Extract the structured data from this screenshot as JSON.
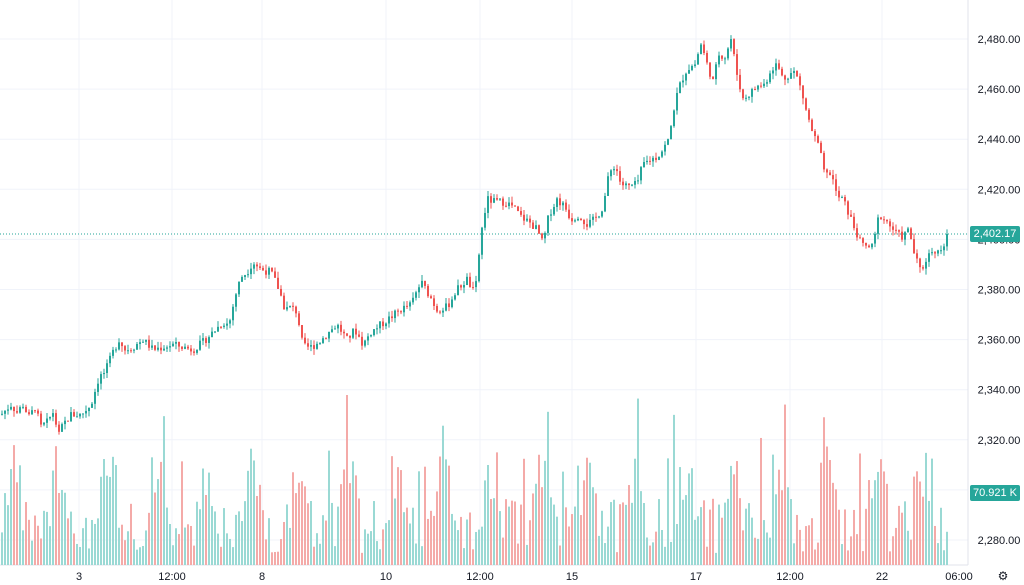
{
  "chart_data": {
    "type": "candlestick",
    "ylim": [
      2275,
      2488
    ],
    "y_ticks": [
      2280,
      2300,
      2320,
      2340,
      2360,
      2380,
      2400,
      2420,
      2440,
      2460,
      2480
    ],
    "y_tick_labels": [
      "2,280.00",
      "2,300.00",
      "2,320.00",
      "2,340.00",
      "2,360.00",
      "2,380.00",
      "2,400.00",
      "2,420.00",
      "2,440.00",
      "2,460.00",
      "2,480.00"
    ],
    "x_tick_labels": [
      "3",
      "12:00",
      "8",
      "10",
      "12:00",
      "15",
      "17",
      "12:00",
      "22",
      "06:00"
    ],
    "close_anchors": [
      [
        0,
        2330
      ],
      [
        10,
        2334
      ],
      [
        16,
        2331
      ],
      [
        22,
        2334
      ],
      [
        28,
        2329
      ],
      [
        34,
        2333
      ],
      [
        40,
        2325
      ],
      [
        46,
        2327
      ],
      [
        52,
        2331
      ],
      [
        58,
        2322
      ],
      [
        62,
        2326
      ],
      [
        70,
        2330
      ],
      [
        80,
        2330
      ],
      [
        90,
        2334
      ],
      [
        98,
        2345
      ],
      [
        104,
        2347
      ],
      [
        112,
        2355
      ],
      [
        118,
        2360
      ],
      [
        124,
        2356
      ],
      [
        132,
        2357
      ],
      [
        142,
        2360
      ],
      [
        152,
        2356
      ],
      [
        162,
        2357
      ],
      [
        172,
        2358
      ],
      [
        182,
        2357
      ],
      [
        192,
        2356
      ],
      [
        202,
        2359
      ],
      [
        212,
        2363
      ],
      [
        222,
        2367
      ],
      [
        228,
        2366
      ],
      [
        234,
        2377
      ],
      [
        240,
        2385
      ],
      [
        246,
        2387
      ],
      [
        252,
        2391
      ],
      [
        260,
        2388
      ],
      [
        270,
        2387
      ],
      [
        278,
        2380
      ],
      [
        284,
        2372
      ],
      [
        290,
        2373
      ],
      [
        296,
        2371
      ],
      [
        302,
        2357
      ],
      [
        310,
        2357
      ],
      [
        318,
        2359
      ],
      [
        328,
        2363
      ],
      [
        336,
        2366
      ],
      [
        346,
        2360
      ],
      [
        354,
        2364
      ],
      [
        362,
        2358
      ],
      [
        370,
        2363
      ],
      [
        380,
        2366
      ],
      [
        390,
        2369
      ],
      [
        400,
        2372
      ],
      [
        410,
        2374
      ],
      [
        420,
        2383
      ],
      [
        428,
        2378
      ],
      [
        436,
        2372
      ],
      [
        446,
        2373
      ],
      [
        456,
        2380
      ],
      [
        466,
        2384
      ],
      [
        474,
        2378
      ],
      [
        480,
        2402
      ],
      [
        486,
        2416
      ],
      [
        494,
        2415
      ],
      [
        504,
        2415
      ],
      [
        512,
        2413
      ],
      [
        520,
        2409
      ],
      [
        528,
        2407
      ],
      [
        536,
        2404
      ],
      [
        542,
        2398
      ],
      [
        548,
        2410
      ],
      [
        556,
        2416
      ],
      [
        564,
        2413
      ],
      [
        570,
        2408
      ],
      [
        578,
        2410
      ],
      [
        586,
        2406
      ],
      [
        594,
        2408
      ],
      [
        602,
        2413
      ],
      [
        608,
        2426
      ],
      [
        614,
        2430
      ],
      [
        620,
        2422
      ],
      [
        628,
        2421
      ],
      [
        636,
        2422
      ],
      [
        642,
        2430
      ],
      [
        650,
        2432
      ],
      [
        656,
        2433
      ],
      [
        662,
        2436
      ],
      [
        668,
        2440
      ],
      [
        674,
        2455
      ],
      [
        680,
        2463
      ],
      [
        686,
        2468
      ],
      [
        694,
        2470
      ],
      [
        700,
        2478
      ],
      [
        706,
        2470
      ],
      [
        712,
        2463
      ],
      [
        718,
        2474
      ],
      [
        724,
        2473
      ],
      [
        730,
        2480
      ],
      [
        736,
        2466
      ],
      [
        742,
        2456
      ],
      [
        748,
        2458
      ],
      [
        756,
        2461
      ],
      [
        764,
        2462
      ],
      [
        770,
        2468
      ],
      [
        776,
        2470
      ],
      [
        782,
        2464
      ],
      [
        788,
        2466
      ],
      [
        794,
        2467
      ],
      [
        800,
        2460
      ],
      [
        806,
        2450
      ],
      [
        812,
        2442
      ],
      [
        818,
        2437
      ],
      [
        824,
        2425
      ],
      [
        830,
        2427
      ],
      [
        836,
        2417
      ],
      [
        842,
        2416
      ],
      [
        848,
        2410
      ],
      [
        854,
        2404
      ],
      [
        860,
        2398
      ],
      [
        866,
        2397
      ],
      [
        872,
        2397
      ],
      [
        878,
        2410
      ],
      [
        884,
        2408
      ],
      [
        890,
        2405
      ],
      [
        896,
        2402
      ],
      [
        902,
        2401
      ],
      [
        908,
        2404
      ],
      [
        914,
        2393
      ],
      [
        920,
        2387
      ],
      [
        926,
        2393
      ],
      [
        932,
        2396
      ],
      [
        938,
        2395
      ],
      [
        944,
        2399
      ],
      [
        947,
        2402
      ]
    ],
    "last_price": 2402.17,
    "last_price_label": "2,402.17",
    "volume_last_label": "70.921 K",
    "colors": {
      "up": "#26a69a",
      "down": "#ef5350",
      "up_volume": "#9ad9d4",
      "down_volume": "#f4aaa8",
      "grid": "#f0f3fa",
      "axis_text": "#131722"
    }
  },
  "icons": {
    "settings": "gear-icon"
  }
}
